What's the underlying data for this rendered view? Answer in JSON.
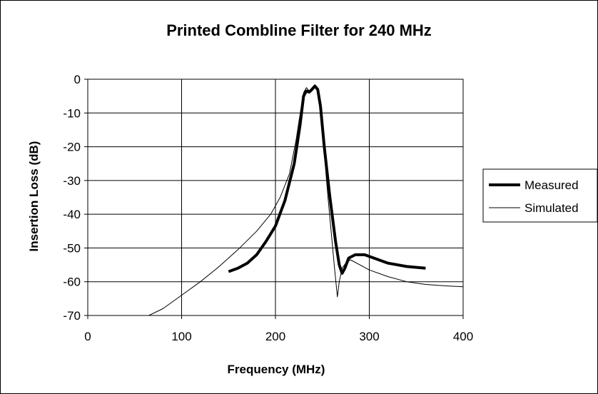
{
  "chart_data": {
    "type": "line",
    "title": "Printed Combline Filter for 240 MHz",
    "xlabel": "Frequency (MHz)",
    "ylabel": "Insertion Loss (dB)",
    "xlim": [
      0,
      400
    ],
    "ylim": [
      -70,
      0
    ],
    "xticks": [
      "0",
      "100",
      "200",
      "300",
      "400"
    ],
    "yticks": [
      "0",
      "-10",
      "-20",
      "-30",
      "-40",
      "-50",
      "-60",
      "-70"
    ],
    "grid": true,
    "legend_position": "right",
    "series": [
      {
        "name": "Measured",
        "color": "#000000",
        "style": "thick",
        "points": [
          [
            150,
            -57
          ],
          [
            160,
            -56
          ],
          [
            170,
            -54.5
          ],
          [
            180,
            -52
          ],
          [
            190,
            -48
          ],
          [
            200,
            -43.5
          ],
          [
            210,
            -36
          ],
          [
            220,
            -25
          ],
          [
            226,
            -14
          ],
          [
            230,
            -5
          ],
          [
            233,
            -3.5
          ],
          [
            236,
            -3.8
          ],
          [
            239,
            -3
          ],
          [
            242,
            -2
          ],
          [
            245,
            -3
          ],
          [
            248,
            -8
          ],
          [
            252,
            -20
          ],
          [
            258,
            -35
          ],
          [
            264,
            -48
          ],
          [
            268,
            -55
          ],
          [
            271,
            -57.5
          ],
          [
            274,
            -56
          ],
          [
            278,
            -53
          ],
          [
            285,
            -52
          ],
          [
            295,
            -52
          ],
          [
            305,
            -53
          ],
          [
            320,
            -54.5
          ],
          [
            340,
            -55.5
          ],
          [
            360,
            -56
          ]
        ]
      },
      {
        "name": "Simulated",
        "color": "#000000",
        "style": "thin",
        "points": [
          [
            65,
            -70
          ],
          [
            80,
            -68
          ],
          [
            100,
            -64
          ],
          [
            120,
            -60
          ],
          [
            140,
            -55.5
          ],
          [
            160,
            -50.5
          ],
          [
            180,
            -45
          ],
          [
            195,
            -40
          ],
          [
            205,
            -35
          ],
          [
            215,
            -28
          ],
          [
            222,
            -18
          ],
          [
            227,
            -9
          ],
          [
            230,
            -4
          ],
          [
            233,
            -2.5
          ],
          [
            236,
            -3.5
          ],
          [
            239,
            -2.5
          ],
          [
            242,
            -2.5
          ],
          [
            245,
            -3.5
          ],
          [
            248,
            -9
          ],
          [
            252,
            -22
          ],
          [
            256,
            -35
          ],
          [
            260,
            -47
          ],
          [
            263,
            -56
          ],
          [
            266,
            -64.5
          ],
          [
            268,
            -60
          ],
          [
            271,
            -56
          ],
          [
            275,
            -54.5
          ],
          [
            280,
            -53.5
          ],
          [
            290,
            -55
          ],
          [
            300,
            -56.5
          ],
          [
            320,
            -58.5
          ],
          [
            340,
            -60
          ],
          [
            360,
            -60.8
          ],
          [
            380,
            -61.2
          ],
          [
            400,
            -61.5
          ]
        ]
      }
    ]
  }
}
